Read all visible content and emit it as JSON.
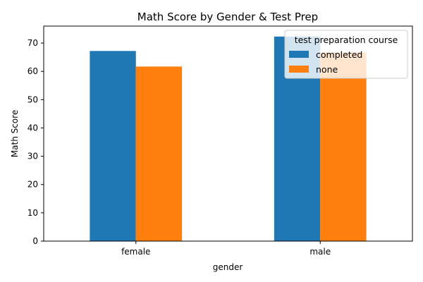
{
  "chart_data": {
    "type": "bar",
    "title": "Math Score by Gender & Test Prep",
    "xlabel": "gender",
    "ylabel": "Math Score",
    "categories": [
      "female",
      "male"
    ],
    "series": [
      {
        "name": "completed",
        "values": [
          67.2,
          72.3
        ],
        "color": "#1f77b4"
      },
      {
        "name": "none",
        "values": [
          61.7,
          66.7
        ],
        "color": "#ff7f0e"
      }
    ],
    "ylim": [
      0,
      76
    ],
    "yticks": [
      0,
      10,
      20,
      30,
      40,
      50,
      60,
      70
    ],
    "grid": false,
    "legend": {
      "title": "test preparation course",
      "placement": "upper-right"
    }
  }
}
